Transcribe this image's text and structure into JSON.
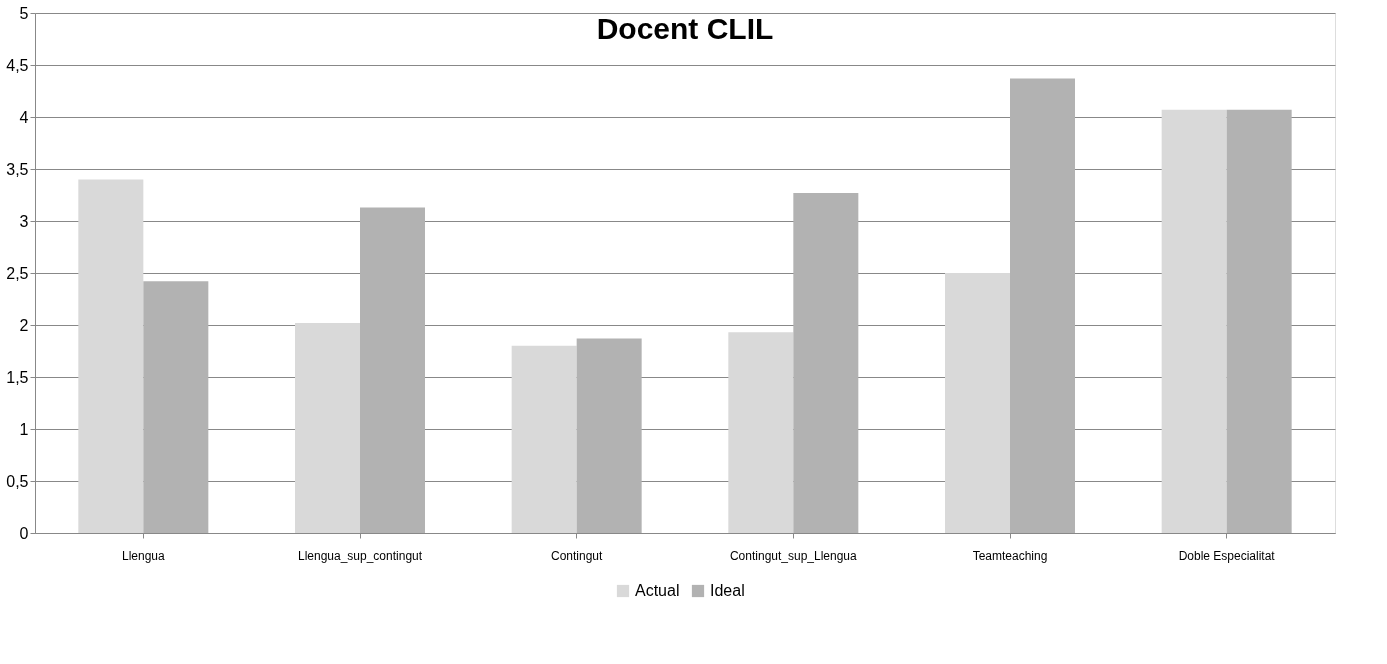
{
  "chart_data": {
    "type": "bar",
    "title": "Docent CLIL",
    "categories": [
      "Llengua",
      "Llengua_sup_contingut",
      "Contingut",
      "Contingut_sup_Llengua",
      "Teamteaching",
      "Doble Especialitat"
    ],
    "series": [
      {
        "name": "Actual",
        "color": "#d9d9d9",
        "values": [
          3.4,
          2.02,
          1.8,
          1.93,
          2.5,
          4.07
        ]
      },
      {
        "name": "Ideal",
        "color": "#b2b2b2",
        "values": [
          2.42,
          3.13,
          1.87,
          3.27,
          4.37,
          4.07
        ]
      }
    ],
    "ylim": [
      0,
      5
    ],
    "yticks": [
      0,
      {
        "value": 0.5,
        "label": "0,5"
      },
      1,
      {
        "value": 1.5,
        "label": "1,5"
      },
      2,
      {
        "value": 2.5,
        "label": "2,5"
      },
      3,
      {
        "value": 3.5,
        "label": "3,5"
      },
      4,
      {
        "value": 4.5,
        "label": "4,5"
      },
      5
    ],
    "grid": "y",
    "legend": "bottom"
  }
}
